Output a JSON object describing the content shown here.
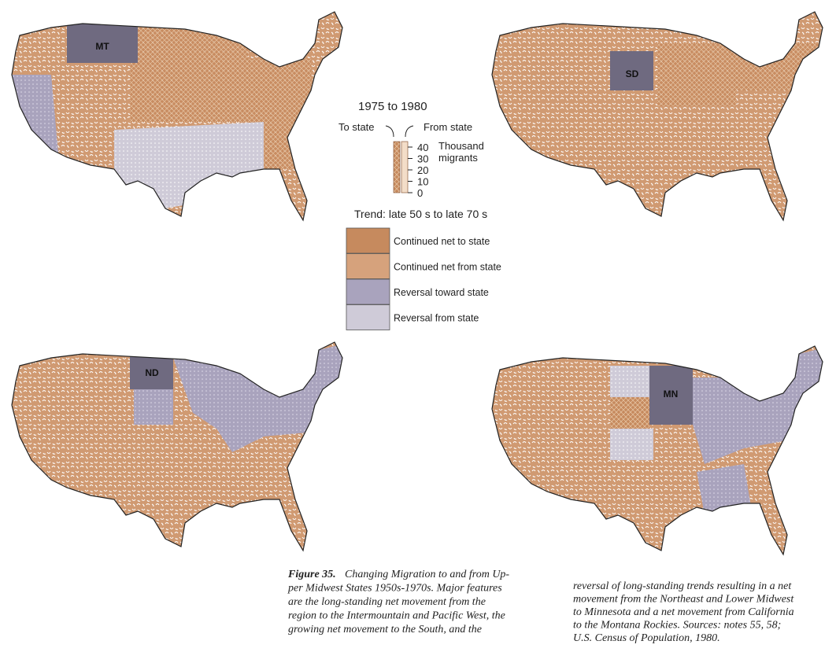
{
  "maps": [
    {
      "label": "MT"
    },
    {
      "label": "SD"
    },
    {
      "label": "ND"
    },
    {
      "label": "MN"
    }
  ],
  "legend": {
    "period": "1975 to 1980",
    "to_state": "To state",
    "from_state": "From state",
    "scale_ticks": [
      40,
      30,
      20,
      10,
      0
    ],
    "scale_unit_lines": [
      "Thousand",
      "migrants"
    ],
    "trend_title": "Trend: late 50 s to late 70 s",
    "categories": [
      {
        "label": "Continued net to state",
        "color": "#c68a5e"
      },
      {
        "label": "Continued net from state",
        "color": "#d6a27c"
      },
      {
        "label": "Reversal toward state",
        "color": "#a9a3bd"
      },
      {
        "label": "Reversal from state",
        "color": "#cfcbd8"
      }
    ]
  },
  "caption": {
    "label": "Figure 35.",
    "left_lines": [
      "Changing Migration to and from Up-",
      "per Midwest States 1950s-1970s. Major features",
      "are the long-standing net movement from the",
      "region to the Intermountain and Pacific West, the",
      "growing net movement to the South, and the"
    ],
    "right_lines": [
      "reversal of long-standing trends resulting in a net",
      "movement from the Northeast and Lower Midwest",
      "to Minnesota and a net movement from California",
      "to the Montana Rockies. Sources: notes 55, 58;",
      "U.S. Census of Population, 1980."
    ]
  }
}
